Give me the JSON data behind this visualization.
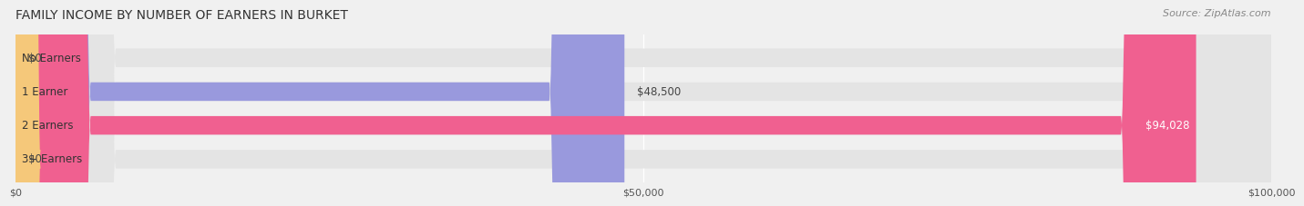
{
  "title": "FAMILY INCOME BY NUMBER OF EARNERS IN BURKET",
  "source": "Source: ZipAtlas.com",
  "categories": [
    "No Earners",
    "1 Earner",
    "2 Earners",
    "3+ Earners"
  ],
  "values": [
    0,
    48500,
    94028,
    0
  ],
  "bar_colors": [
    "#5fd0cc",
    "#9999dd",
    "#f06090",
    "#f5c87a"
  ],
  "label_colors": [
    "#5fd0cc",
    "#9999dd",
    "#f06090",
    "#f5c87a"
  ],
  "value_labels": [
    "$0",
    "$48,500",
    "$94,028",
    "$0"
  ],
  "xlim": [
    0,
    100000
  ],
  "xticks": [
    0,
    50000,
    100000
  ],
  "xtick_labels": [
    "$0",
    "$50,000",
    "$100,000"
  ],
  "bar_height": 0.55,
  "background_color": "#f0f0f0",
  "bar_bg_color": "#e8e8e8",
  "title_fontsize": 10,
  "source_fontsize": 8,
  "label_fontsize": 8.5,
  "value_fontsize": 8.5,
  "tick_fontsize": 8
}
